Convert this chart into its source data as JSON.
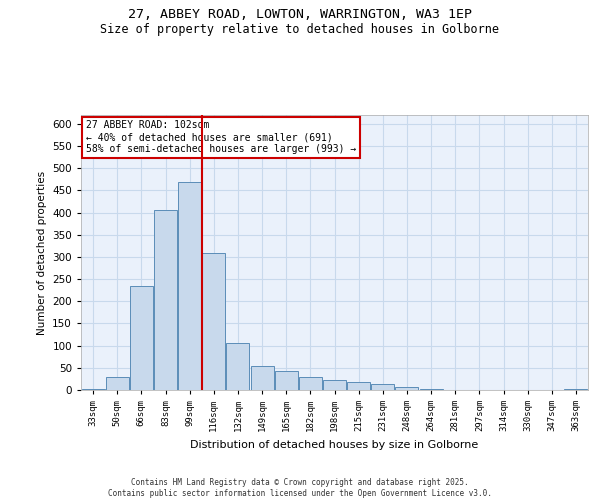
{
  "title_line1": "27, ABBEY ROAD, LOWTON, WARRINGTON, WA3 1EP",
  "title_line2": "Size of property relative to detached houses in Golborne",
  "xlabel": "Distribution of detached houses by size in Golborne",
  "ylabel": "Number of detached properties",
  "categories": [
    "33sqm",
    "50sqm",
    "66sqm",
    "83sqm",
    "99sqm",
    "116sqm",
    "132sqm",
    "149sqm",
    "165sqm",
    "182sqm",
    "198sqm",
    "215sqm",
    "231sqm",
    "248sqm",
    "264sqm",
    "281sqm",
    "297sqm",
    "314sqm",
    "330sqm",
    "347sqm",
    "363sqm"
  ],
  "values": [
    3,
    30,
    235,
    405,
    470,
    310,
    105,
    55,
    42,
    30,
    22,
    18,
    14,
    7,
    3,
    0,
    0,
    0,
    0,
    0,
    3
  ],
  "bar_color": "#c8d9ec",
  "bar_edge_color": "#5b8db8",
  "grid_color": "#c8d9ec",
  "background_color": "#eaf1fb",
  "vline_x_index": 4,
  "vline_color": "#cc0000",
  "annotation_text": "27 ABBEY ROAD: 102sqm\n← 40% of detached houses are smaller (691)\n58% of semi-detached houses are larger (993) →",
  "annotation_box_color": "#ffffff",
  "annotation_box_edge": "#cc0000",
  "footer_text": "Contains HM Land Registry data © Crown copyright and database right 2025.\nContains public sector information licensed under the Open Government Licence v3.0.",
  "ylim": [
    0,
    620
  ],
  "yticks": [
    0,
    50,
    100,
    150,
    200,
    250,
    300,
    350,
    400,
    450,
    500,
    550,
    600
  ]
}
